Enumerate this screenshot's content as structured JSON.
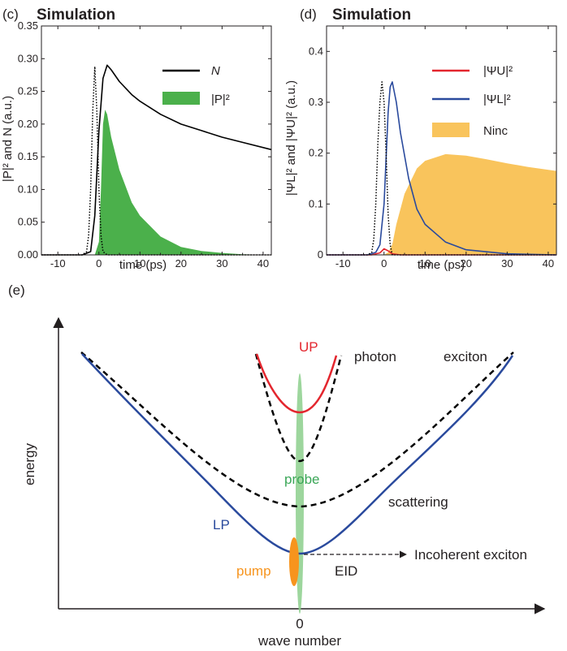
{
  "chart_data": [
    {
      "panel": "(c)",
      "type": "line",
      "title": "Simulation",
      "xlabel": "time (ps)",
      "ylabel": "|P|² and N (a.u.)",
      "xlim": [
        -14,
        42
      ],
      "ylim": [
        0,
        0.35
      ],
      "xticks": [
        -10,
        0,
        10,
        20,
        30,
        40
      ],
      "yticks": [
        0.0,
        0.05,
        0.1,
        0.15,
        0.2,
        0.25,
        0.3,
        0.35
      ],
      "ytick_labels": [
        "0.00",
        "0.05",
        "0.10",
        "0.15",
        "0.20",
        "0.25",
        "0.30",
        "0.35"
      ],
      "legend": "top-right",
      "series": [
        {
          "name": "N",
          "kind": "line",
          "color": "#000000",
          "x": [
            -14,
            -4,
            -2,
            -1,
            0,
            1,
            2,
            3,
            5,
            8,
            10,
            15,
            20,
            25,
            30,
            35,
            42
          ],
          "y": [
            0,
            0,
            0.005,
            0.06,
            0.19,
            0.27,
            0.29,
            0.283,
            0.265,
            0.245,
            0.235,
            0.215,
            0.2,
            0.19,
            0.18,
            0.172,
            0.161
          ]
        },
        {
          "name": "|P|²",
          "kind": "area",
          "color": "#4bb04b",
          "x": [
            -14,
            -1,
            0,
            0.5,
            1,
            1.5,
            2,
            3,
            5,
            8,
            10,
            15,
            20,
            25,
            30,
            35,
            42
          ],
          "y": [
            0,
            0,
            0.02,
            0.1,
            0.2,
            0.222,
            0.215,
            0.18,
            0.13,
            0.08,
            0.06,
            0.028,
            0.012,
            0.006,
            0.003,
            0.001,
            0
          ]
        },
        {
          "name": "",
          "kind": "dotted",
          "color": "#000000",
          "x": [
            -14,
            -4,
            -3,
            -2.5,
            -2,
            -1.5,
            -1,
            -0.5,
            0,
            0.5,
            1,
            2,
            42
          ],
          "y": [
            0,
            0,
            0.005,
            0.03,
            0.1,
            0.22,
            0.288,
            0.22,
            0.1,
            0.03,
            0.005,
            0,
            0
          ]
        }
      ]
    },
    {
      "panel": "(d)",
      "type": "line",
      "title": "Simulation",
      "xlabel": "time (ps)",
      "ylabel": "|ΨL|² and |ΨU|² (a.u.)",
      "xlim": [
        -14,
        42
      ],
      "ylim": [
        0,
        0.45
      ],
      "xticks": [
        -10,
        0,
        10,
        20,
        30,
        40
      ],
      "yticks": [
        0,
        0.1,
        0.2,
        0.3,
        0.4
      ],
      "ytick_labels": [
        "0",
        "0.1",
        "0.2",
        "0.3",
        "0.4"
      ],
      "legend": "top-right",
      "series": [
        {
          "name": "|ΨU|²",
          "kind": "line",
          "color": "#e3262e",
          "x": [
            -14,
            -3,
            -1,
            0,
            1,
            2,
            4,
            42
          ],
          "y": [
            0,
            0,
            0.004,
            0.012,
            0.008,
            0.002,
            0,
            0
          ]
        },
        {
          "name": "|ΨL|²",
          "kind": "line",
          "color": "#2a4a9d",
          "x": [
            -14,
            -4,
            -2,
            -1,
            0,
            1,
            1.5,
            2,
            3,
            4,
            6,
            8,
            10,
            15,
            20,
            30,
            42
          ],
          "y": [
            0,
            0,
            0.005,
            0.02,
            0.1,
            0.28,
            0.33,
            0.34,
            0.3,
            0.24,
            0.15,
            0.09,
            0.06,
            0.025,
            0.01,
            0.002,
            0
          ]
        },
        {
          "name": "Ninc",
          "kind": "area",
          "color": "#f9c45c",
          "x": [
            -14,
            0,
            1,
            2,
            3,
            5,
            8,
            10,
            15,
            20,
            25,
            30,
            35,
            42
          ],
          "y": [
            0,
            0,
            0.005,
            0.02,
            0.06,
            0.12,
            0.17,
            0.185,
            0.198,
            0.195,
            0.188,
            0.18,
            0.173,
            0.165
          ]
        },
        {
          "name": "",
          "kind": "dotted",
          "color": "#000000",
          "x": [
            -14,
            -4,
            -3,
            -2.5,
            -2,
            -1.5,
            -1,
            -0.5,
            0,
            0.5,
            1,
            1.5,
            2,
            42
          ],
          "y": [
            0,
            0,
            0.005,
            0.03,
            0.1,
            0.22,
            0.3,
            0.34,
            0.3,
            0.2,
            0.08,
            0.02,
            0,
            0
          ]
        }
      ]
    },
    {
      "panel": "(e)",
      "type": "diagram",
      "xlabel": "wave number",
      "ylabel": "energy",
      "xtick_label": "0",
      "labels": {
        "up": "UP",
        "photon": "photon",
        "exciton": "exciton",
        "probe": "probe",
        "scattering": "scattering",
        "lp": "LP",
        "pump": "pump",
        "eid": "EID",
        "incoherent": "Incoherent exciton"
      },
      "colors": {
        "lp": "#2a4a9d",
        "up": "#e3262e",
        "probe": "#8ccf8c",
        "pump": "#f7941d",
        "probe_text": "#3aa657",
        "pump_text": "#f7941d"
      }
    }
  ]
}
